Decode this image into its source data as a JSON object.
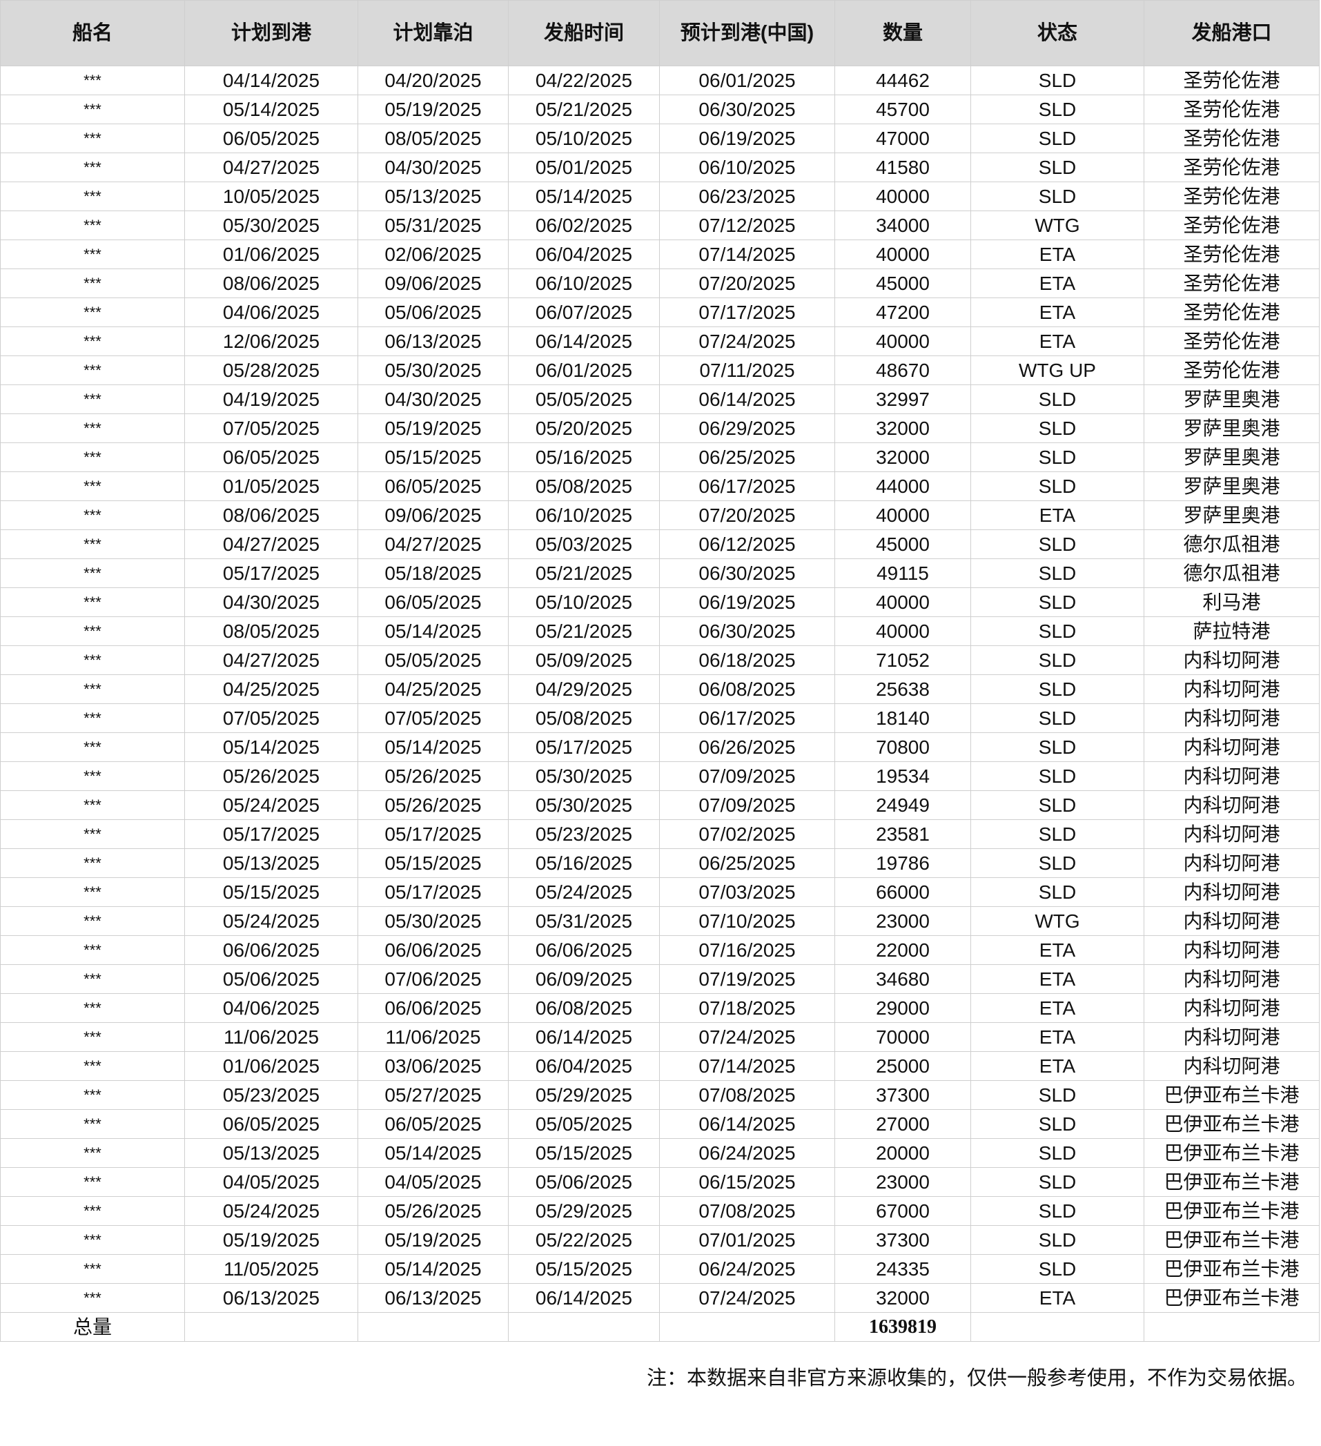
{
  "table": {
    "headers": [
      "船名",
      "计划到港",
      "计划靠泊",
      "发船时间",
      "预计到港(中国)",
      "数量",
      "状态",
      "发船港口"
    ],
    "rows": [
      [
        "***",
        "04/14/2025",
        "04/20/2025",
        "04/22/2025",
        "06/01/2025",
        "44462",
        "SLD",
        "圣劳伦佐港"
      ],
      [
        "***",
        "05/14/2025",
        "05/19/2025",
        "05/21/2025",
        "06/30/2025",
        "45700",
        "SLD",
        "圣劳伦佐港"
      ],
      [
        "***",
        "06/05/2025",
        "08/05/2025",
        "05/10/2025",
        "06/19/2025",
        "47000",
        "SLD",
        "圣劳伦佐港"
      ],
      [
        "***",
        "04/27/2025",
        "04/30/2025",
        "05/01/2025",
        "06/10/2025",
        "41580",
        "SLD",
        "圣劳伦佐港"
      ],
      [
        "***",
        "10/05/2025",
        "05/13/2025",
        "05/14/2025",
        "06/23/2025",
        "40000",
        "SLD",
        "圣劳伦佐港"
      ],
      [
        "***",
        "05/30/2025",
        "05/31/2025",
        "06/02/2025",
        "07/12/2025",
        "34000",
        "WTG",
        "圣劳伦佐港"
      ],
      [
        "***",
        "01/06/2025",
        "02/06/2025",
        "06/04/2025",
        "07/14/2025",
        "40000",
        "ETA",
        "圣劳伦佐港"
      ],
      [
        "***",
        "08/06/2025",
        "09/06/2025",
        "06/10/2025",
        "07/20/2025",
        "45000",
        "ETA",
        "圣劳伦佐港"
      ],
      [
        "***",
        "04/06/2025",
        "05/06/2025",
        "06/07/2025",
        "07/17/2025",
        "47200",
        "ETA",
        "圣劳伦佐港"
      ],
      [
        "***",
        "12/06/2025",
        "06/13/2025",
        "06/14/2025",
        "07/24/2025",
        "40000",
        "ETA",
        "圣劳伦佐港"
      ],
      [
        "***",
        "05/28/2025",
        "05/30/2025",
        "06/01/2025",
        "07/11/2025",
        "48670",
        "WTG UP",
        "圣劳伦佐港"
      ],
      [
        "***",
        "04/19/2025",
        "04/30/2025",
        "05/05/2025",
        "06/14/2025",
        "32997",
        "SLD",
        "罗萨里奥港"
      ],
      [
        "***",
        "07/05/2025",
        "05/19/2025",
        "05/20/2025",
        "06/29/2025",
        "32000",
        "SLD",
        "罗萨里奥港"
      ],
      [
        "***",
        "06/05/2025",
        "05/15/2025",
        "05/16/2025",
        "06/25/2025",
        "32000",
        "SLD",
        "罗萨里奥港"
      ],
      [
        "***",
        "01/05/2025",
        "06/05/2025",
        "05/08/2025",
        "06/17/2025",
        "44000",
        "SLD",
        "罗萨里奥港"
      ],
      [
        "***",
        "08/06/2025",
        "09/06/2025",
        "06/10/2025",
        "07/20/2025",
        "40000",
        "ETA",
        "罗萨里奥港"
      ],
      [
        "***",
        "04/27/2025",
        "04/27/2025",
        "05/03/2025",
        "06/12/2025",
        "45000",
        "SLD",
        "德尔瓜祖港"
      ],
      [
        "***",
        "05/17/2025",
        "05/18/2025",
        "05/21/2025",
        "06/30/2025",
        "49115",
        "SLD",
        "德尔瓜祖港"
      ],
      [
        "***",
        "04/30/2025",
        "06/05/2025",
        "05/10/2025",
        "06/19/2025",
        "40000",
        "SLD",
        "利马港"
      ],
      [
        "***",
        "08/05/2025",
        "05/14/2025",
        "05/21/2025",
        "06/30/2025",
        "40000",
        "SLD",
        "萨拉特港"
      ],
      [
        "***",
        "04/27/2025",
        "05/05/2025",
        "05/09/2025",
        "06/18/2025",
        "71052",
        "SLD",
        "内科切阿港"
      ],
      [
        "***",
        "04/25/2025",
        "04/25/2025",
        "04/29/2025",
        "06/08/2025",
        "25638",
        "SLD",
        "内科切阿港"
      ],
      [
        "***",
        "07/05/2025",
        "07/05/2025",
        "05/08/2025",
        "06/17/2025",
        "18140",
        "SLD",
        "内科切阿港"
      ],
      [
        "***",
        "05/14/2025",
        "05/14/2025",
        "05/17/2025",
        "06/26/2025",
        "70800",
        "SLD",
        "内科切阿港"
      ],
      [
        "***",
        "05/26/2025",
        "05/26/2025",
        "05/30/2025",
        "07/09/2025",
        "19534",
        "SLD",
        "内科切阿港"
      ],
      [
        "***",
        "05/24/2025",
        "05/26/2025",
        "05/30/2025",
        "07/09/2025",
        "24949",
        "SLD",
        "内科切阿港"
      ],
      [
        "***",
        "05/17/2025",
        "05/17/2025",
        "05/23/2025",
        "07/02/2025",
        "23581",
        "SLD",
        "内科切阿港"
      ],
      [
        "***",
        "05/13/2025",
        "05/15/2025",
        "05/16/2025",
        "06/25/2025",
        "19786",
        "SLD",
        "内科切阿港"
      ],
      [
        "***",
        "05/15/2025",
        "05/17/2025",
        "05/24/2025",
        "07/03/2025",
        "66000",
        "SLD",
        "内科切阿港"
      ],
      [
        "***",
        "05/24/2025",
        "05/30/2025",
        "05/31/2025",
        "07/10/2025",
        "23000",
        "WTG",
        "内科切阿港"
      ],
      [
        "***",
        "06/06/2025",
        "06/06/2025",
        "06/06/2025",
        "07/16/2025",
        "22000",
        "ETA",
        "内科切阿港"
      ],
      [
        "***",
        "05/06/2025",
        "07/06/2025",
        "06/09/2025",
        "07/19/2025",
        "34680",
        "ETA",
        "内科切阿港"
      ],
      [
        "***",
        "04/06/2025",
        "06/06/2025",
        "06/08/2025",
        "07/18/2025",
        "29000",
        "ETA",
        "内科切阿港"
      ],
      [
        "***",
        "11/06/2025",
        "11/06/2025",
        "06/14/2025",
        "07/24/2025",
        "70000",
        "ETA",
        "内科切阿港"
      ],
      [
        "***",
        "01/06/2025",
        "03/06/2025",
        "06/04/2025",
        "07/14/2025",
        "25000",
        "ETA",
        "内科切阿港"
      ],
      [
        "***",
        "05/23/2025",
        "05/27/2025",
        "05/29/2025",
        "07/08/2025",
        "37300",
        "SLD",
        "巴伊亚布兰卡港"
      ],
      [
        "***",
        "06/05/2025",
        "06/05/2025",
        "05/05/2025",
        "06/14/2025",
        "27000",
        "SLD",
        "巴伊亚布兰卡港"
      ],
      [
        "***",
        "05/13/2025",
        "05/14/2025",
        "05/15/2025",
        "06/24/2025",
        "20000",
        "SLD",
        "巴伊亚布兰卡港"
      ],
      [
        "***",
        "04/05/2025",
        "04/05/2025",
        "05/06/2025",
        "06/15/2025",
        "23000",
        "SLD",
        "巴伊亚布兰卡港"
      ],
      [
        "***",
        "05/24/2025",
        "05/26/2025",
        "05/29/2025",
        "07/08/2025",
        "67000",
        "SLD",
        "巴伊亚布兰卡港"
      ],
      [
        "***",
        "05/19/2025",
        "05/19/2025",
        "05/22/2025",
        "07/01/2025",
        "37300",
        "SLD",
        "巴伊亚布兰卡港"
      ],
      [
        "***",
        "11/05/2025",
        "05/14/2025",
        "05/15/2025",
        "06/24/2025",
        "24335",
        "SLD",
        "巴伊亚布兰卡港"
      ],
      [
        "***",
        "06/13/2025",
        "06/13/2025",
        "06/14/2025",
        "07/24/2025",
        "32000",
        "ETA",
        "巴伊亚布兰卡港"
      ]
    ],
    "total": {
      "label": "总量",
      "quantity": "1639819"
    }
  },
  "note": "注：本数据来自非官方来源收集的，仅供一般参考使用，不作为交易依据。",
  "colors": {
    "header_bg": "#d9d9d9",
    "grid": "#cfcfcf"
  }
}
